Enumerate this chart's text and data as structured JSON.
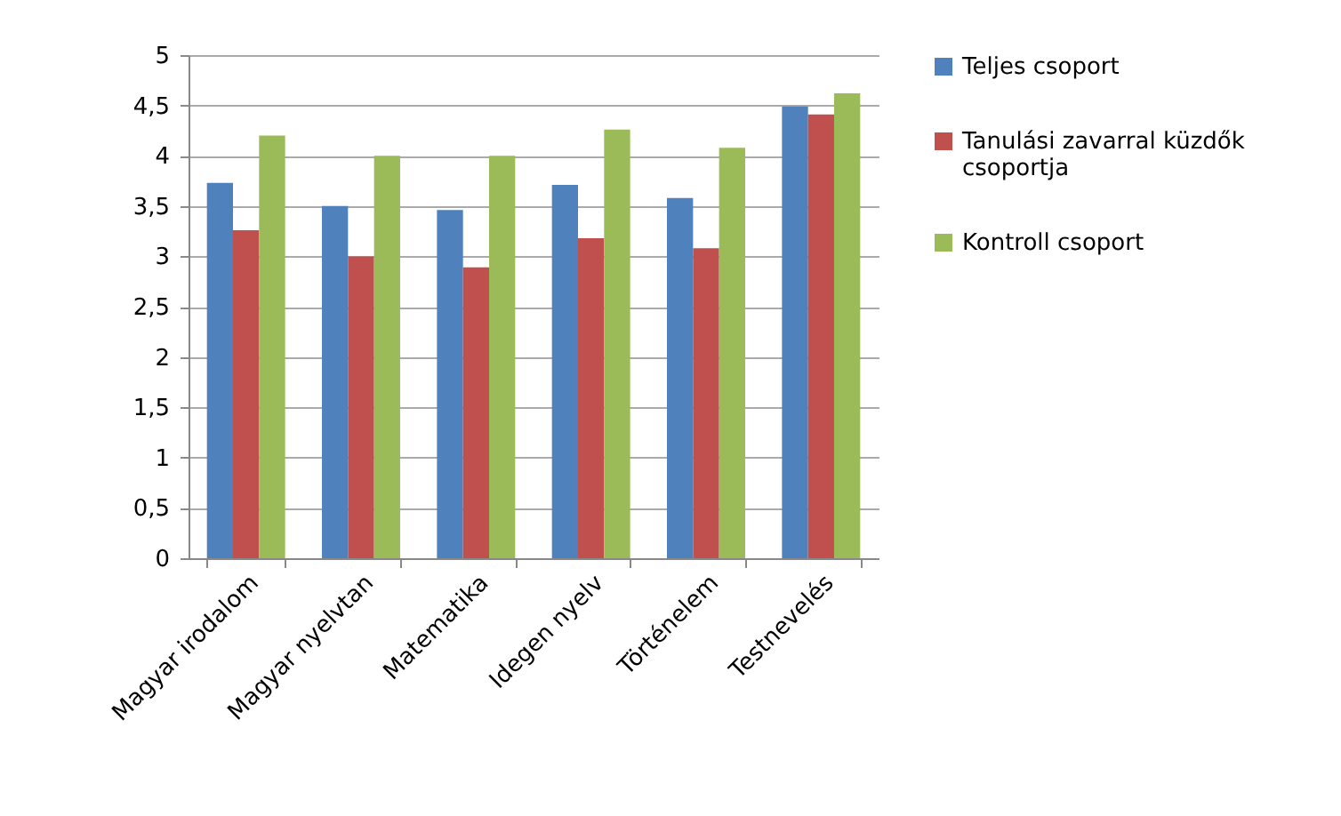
{
  "chart_data": {
    "type": "bar",
    "categories": [
      "Magyar irodalom",
      "Magyar nyelvtan",
      "Matematika",
      "Idegen nyelv",
      "Történelem",
      "Testnevelés"
    ],
    "series": [
      {
        "name": "Teljes csoport",
        "color": "#4f81bd",
        "values": [
          3.73,
          3.5,
          3.46,
          3.71,
          3.58,
          4.49
        ]
      },
      {
        "name": "Tanulási zavarral küzdők csoportja",
        "color": "#c0504d",
        "values": [
          3.26,
          3.0,
          2.89,
          3.18,
          3.08,
          4.41
        ]
      },
      {
        "name": "Kontroll csoport",
        "color": "#9bbb59",
        "values": [
          4.2,
          4.0,
          4.0,
          4.26,
          4.08,
          4.62
        ]
      }
    ],
    "ylim": [
      0,
      5
    ],
    "yticks": [
      0,
      {
        "value": 0.5,
        "label": "0,5"
      },
      1,
      {
        "value": 1.5,
        "label": "1,5"
      },
      2,
      {
        "value": 2.5,
        "label": "2,5"
      },
      3,
      {
        "value": 3.5,
        "label": "3,5"
      },
      4,
      {
        "value": 4.5,
        "label": "4,5"
      },
      5
    ],
    "grid": "y",
    "legend": "right"
  }
}
